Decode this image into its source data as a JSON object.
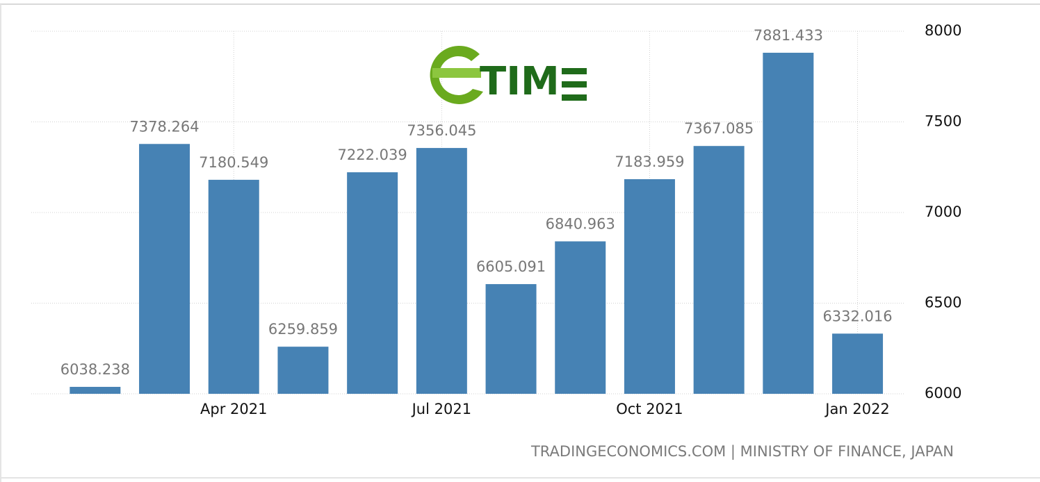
{
  "chart_data": {
    "type": "bar",
    "categories": [
      null,
      null,
      "Apr 2021",
      null,
      null,
      "Jul 2021",
      null,
      null,
      "Oct 2021",
      null,
      null,
      "Jan 2022"
    ],
    "values": [
      6038.238,
      7378.264,
      7180.549,
      6259.859,
      7222.039,
      7356.045,
      6605.091,
      6840.963,
      7183.959,
      7367.085,
      7881.433,
      6332.016
    ],
    "color": "#4682b4",
    "ylim": [
      6000,
      8000
    ],
    "yticks": [
      6000,
      6500,
      7000,
      7500,
      8000
    ],
    "grid": true,
    "watermark": "TIM",
    "source": "TRADINGECONOMICS.COM | MINISTRY OF FINANCE, JAPAN"
  }
}
